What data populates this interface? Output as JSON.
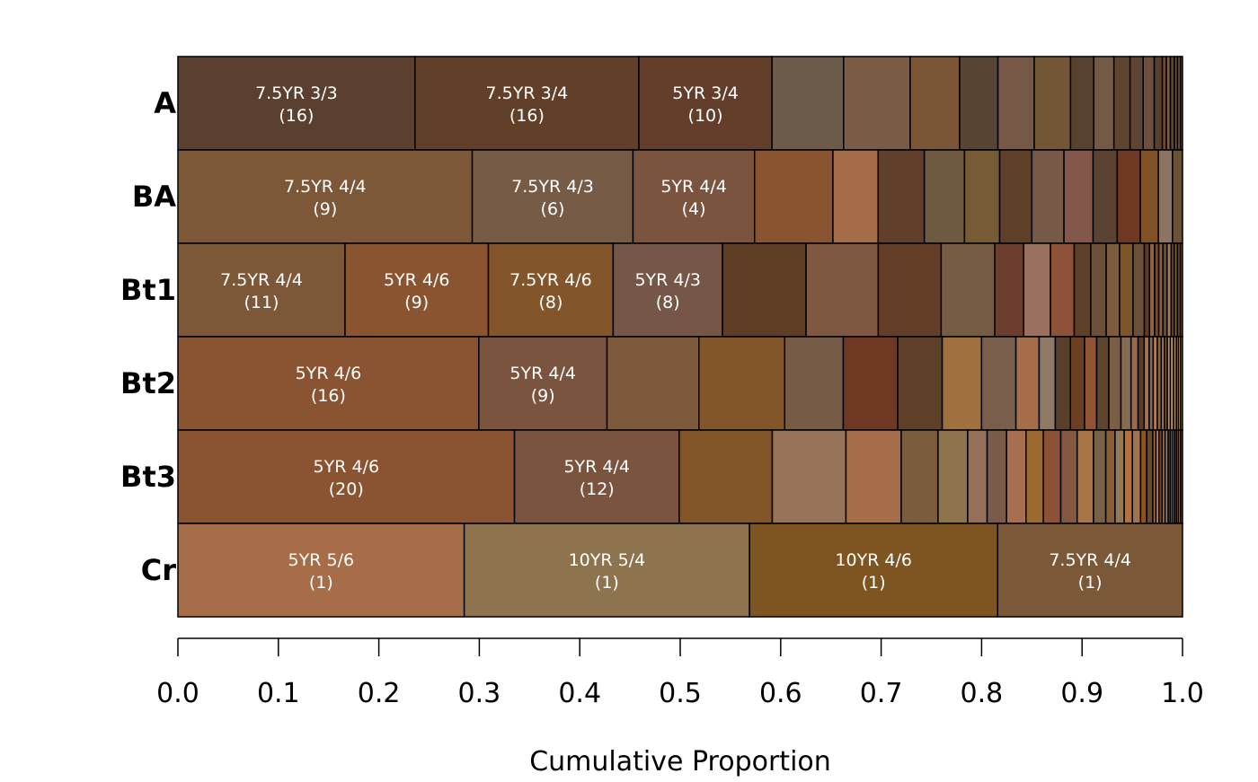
{
  "chart_data": {
    "type": "stacked-proportion-bar",
    "title": "",
    "xlabel": "Cumulative Proportion",
    "ylabel": "",
    "xlim": [
      0,
      1
    ],
    "x_ticks": [
      "0.0",
      "0.1",
      "0.2",
      "0.3",
      "0.4",
      "0.5",
      "0.6",
      "0.7",
      "0.8",
      "0.9",
      "1.0"
    ],
    "rows": [
      {
        "name": "A",
        "segments": [
          {
            "proportion": 0.235,
            "color": "#5b4030",
            "label": "7.5YR 3/3",
            "count": "(16)"
          },
          {
            "proportion": 0.222,
            "color": "#613f28",
            "label": "7.5YR 3/4",
            "count": "(16)"
          },
          {
            "proportion": 0.132,
            "color": "#633e2b",
            "label": "5YR 3/4",
            "count": "(10)"
          },
          {
            "proportion": 0.071,
            "color": "#6c5a4a"
          },
          {
            "proportion": 0.066,
            "color": "#785c45"
          },
          {
            "proportion": 0.049,
            "color": "#7a5536"
          },
          {
            "proportion": 0.038,
            "color": "#574433"
          },
          {
            "proportion": 0.036,
            "color": "#755845"
          },
          {
            "proportion": 0.036,
            "color": "#735636"
          },
          {
            "proportion": 0.023,
            "color": "#56422e"
          },
          {
            "proportion": 0.02,
            "color": "#725a44"
          },
          {
            "proportion": 0.016,
            "color": "#5f4530"
          },
          {
            "proportion": 0.013,
            "color": "#5f4431"
          },
          {
            "proportion": 0.011,
            "color": "#704e3c"
          },
          {
            "proportion": 0.008,
            "color": "#5a3f2d"
          },
          {
            "proportion": 0.004,
            "color": "#6b4a36"
          },
          {
            "proportion": 0.004,
            "color": "#7a5a40"
          },
          {
            "proportion": 0.004,
            "color": "#5e4634"
          },
          {
            "proportion": 0.003,
            "color": "#735337"
          },
          {
            "proportion": 0.003,
            "color": "#644a38"
          },
          {
            "proportion": 0.002,
            "color": "#6e533c"
          }
        ]
      },
      {
        "name": "BA",
        "segments": [
          {
            "proportion": 0.293,
            "color": "#7c5838",
            "label": "7.5YR 4/4",
            "count": "(9)"
          },
          {
            "proportion": 0.16,
            "color": "#765b46",
            "label": "7.5YR 4/3",
            "count": "(6)"
          },
          {
            "proportion": 0.121,
            "color": "#7b5440",
            "label": "5YR 4/4",
            "count": "(4)"
          },
          {
            "proportion": 0.078,
            "color": "#8a5431"
          },
          {
            "proportion": 0.045,
            "color": "#a46c48"
          },
          {
            "proportion": 0.046,
            "color": "#623f2a"
          },
          {
            "proportion": 0.04,
            "color": "#6e5a40"
          },
          {
            "proportion": 0.035,
            "color": "#775a36"
          },
          {
            "proportion": 0.032,
            "color": "#5e3f28"
          },
          {
            "proportion": 0.032,
            "color": "#765946"
          },
          {
            "proportion": 0.029,
            "color": "#83574a"
          },
          {
            "proportion": 0.024,
            "color": "#5b4331"
          },
          {
            "proportion": 0.023,
            "color": "#6e3823"
          },
          {
            "proportion": 0.018,
            "color": "#805124"
          },
          {
            "proportion": 0.014,
            "color": "#8c7462"
          },
          {
            "proportion": 0.01,
            "color": "#6a5236"
          }
        ]
      },
      {
        "name": "Bt1",
        "segments": [
          {
            "proportion": 0.162,
            "color": "#7c5839",
            "label": "7.5YR 4/4",
            "count": "(11)"
          },
          {
            "proportion": 0.139,
            "color": "#8a5431",
            "label": "5YR 4/6",
            "count": "(9)"
          },
          {
            "proportion": 0.121,
            "color": "#82552a",
            "label": "7.5YR 4/6",
            "count": "(8)"
          },
          {
            "proportion": 0.106,
            "color": "#765646",
            "label": "5YR 4/3",
            "count": "(8)"
          },
          {
            "proportion": 0.081,
            "color": "#5f3e25"
          },
          {
            "proportion": 0.07,
            "color": "#7e5840"
          },
          {
            "proportion": 0.061,
            "color": "#643f28"
          },
          {
            "proportion": 0.052,
            "color": "#765c45"
          },
          {
            "proportion": 0.028,
            "color": "#6d3d30"
          },
          {
            "proportion": 0.026,
            "color": "#9a7060"
          },
          {
            "proportion": 0.023,
            "color": "#8e5239"
          },
          {
            "proportion": 0.016,
            "color": "#5c4128"
          },
          {
            "proportion": 0.015,
            "color": "#6a4f39"
          },
          {
            "proportion": 0.013,
            "color": "#7c5c3f"
          },
          {
            "proportion": 0.013,
            "color": "#7d5627"
          },
          {
            "proportion": 0.011,
            "color": "#6a5038"
          },
          {
            "proportion": 0.005,
            "color": "#5e3c2a"
          },
          {
            "proportion": 0.005,
            "color": "#8b6244"
          },
          {
            "proportion": 0.004,
            "color": "#714c33"
          },
          {
            "proportion": 0.004,
            "color": "#846048"
          },
          {
            "proportion": 0.004,
            "color": "#6b4a30"
          },
          {
            "proportion": 0.004,
            "color": "#9a7a62"
          },
          {
            "proportion": 0.003,
            "color": "#6e3e2a"
          },
          {
            "proportion": 0.003,
            "color": "#7a5c40"
          },
          {
            "proportion": 0.003,
            "color": "#5d3e2c"
          },
          {
            "proportion": 0.002,
            "color": "#8a6445"
          }
        ]
      },
      {
        "name": "Bt2",
        "segments": [
          {
            "proportion": 0.298,
            "color": "#8a5331",
            "label": "5YR 4/6",
            "count": "(16)"
          },
          {
            "proportion": 0.127,
            "color": "#7b5440",
            "label": "5YR 4/4",
            "count": "(9)"
          },
          {
            "proportion": 0.091,
            "color": "#7e5a3c"
          },
          {
            "proportion": 0.085,
            "color": "#83562a"
          },
          {
            "proportion": 0.058,
            "color": "#765b46"
          },
          {
            "proportion": 0.054,
            "color": "#6e3823"
          },
          {
            "proportion": 0.044,
            "color": "#5e3f28"
          },
          {
            "proportion": 0.039,
            "color": "#a0703f"
          },
          {
            "proportion": 0.034,
            "color": "#795e4c"
          },
          {
            "proportion": 0.023,
            "color": "#a56d4a"
          },
          {
            "proportion": 0.016,
            "color": "#8e7a64"
          },
          {
            "proportion": 0.015,
            "color": "#5a3f2a"
          },
          {
            "proportion": 0.014,
            "color": "#6b3f22"
          },
          {
            "proportion": 0.012,
            "color": "#915535"
          },
          {
            "proportion": 0.012,
            "color": "#5e4530"
          },
          {
            "proportion": 0.012,
            "color": "#7b5f45"
          },
          {
            "proportion": 0.01,
            "color": "#846c50"
          },
          {
            "proportion": 0.007,
            "color": "#9a6a4a"
          },
          {
            "proportion": 0.006,
            "color": "#5c3b2a"
          },
          {
            "proportion": 0.005,
            "color": "#a0724a"
          },
          {
            "proportion": 0.004,
            "color": "#7a6a5a"
          },
          {
            "proportion": 0.004,
            "color": "#b08052"
          },
          {
            "proportion": 0.004,
            "color": "#8a6040"
          },
          {
            "proportion": 0.003,
            "color": "#a07a58"
          },
          {
            "proportion": 0.003,
            "color": "#6c5038"
          },
          {
            "proportion": 0.003,
            "color": "#b89068"
          },
          {
            "proportion": 0.003,
            "color": "#c09a70"
          },
          {
            "proportion": 0.003,
            "color": "#9a7a50"
          },
          {
            "proportion": 0.002,
            "color": "#a88a62"
          },
          {
            "proportion": 0.002,
            "color": "#c4a070"
          },
          {
            "proportion": 0.002,
            "color": "#8a7050"
          }
        ]
      },
      {
        "name": "Bt3",
        "segments": [
          {
            "proportion": 0.329,
            "color": "#8a5331",
            "label": "5YR 4/6",
            "count": "(20)"
          },
          {
            "proportion": 0.161,
            "color": "#7b5440",
            "label": "5YR 4/4",
            "count": "(12)"
          },
          {
            "proportion": 0.091,
            "color": "#83562a"
          },
          {
            "proportion": 0.072,
            "color": "#977459"
          },
          {
            "proportion": 0.054,
            "color": "#a56d48"
          },
          {
            "proportion": 0.036,
            "color": "#7b5c3e"
          },
          {
            "proportion": 0.029,
            "color": "#8e734f"
          },
          {
            "proportion": 0.019,
            "color": "#94705b"
          },
          {
            "proportion": 0.019,
            "color": "#7a5a48"
          },
          {
            "proportion": 0.019,
            "color": "#a86e50"
          },
          {
            "proportion": 0.017,
            "color": "#9a6a30"
          },
          {
            "proportion": 0.017,
            "color": "#8c5238"
          },
          {
            "proportion": 0.016,
            "color": "#855840"
          },
          {
            "proportion": 0.016,
            "color": "#a87548"
          },
          {
            "proportion": 0.012,
            "color": "#7b6048"
          },
          {
            "proportion": 0.009,
            "color": "#8a5e34"
          },
          {
            "proportion": 0.009,
            "color": "#927a58"
          },
          {
            "proportion": 0.008,
            "color": "#b07244"
          },
          {
            "proportion": 0.008,
            "color": "#9c7650"
          },
          {
            "proportion": 0.006,
            "color": "#875428"
          },
          {
            "proportion": 0.006,
            "color": "#6a4a2c"
          },
          {
            "proportion": 0.003,
            "color": "#a06a3e"
          },
          {
            "proportion": 0.003,
            "color": "#b87a58"
          },
          {
            "proportion": 0.003,
            "color": "#7a4a30"
          },
          {
            "proportion": 0.003,
            "color": "#8e6a50"
          },
          {
            "proportion": 0.003,
            "color": "#a07860"
          },
          {
            "proportion": 0.002,
            "color": "#6e5440"
          },
          {
            "proportion": 0.002,
            "color": "#9e7e64"
          },
          {
            "proportion": 0.002,
            "color": "#b08a6a"
          },
          {
            "proportion": 0.002,
            "color": "#7e5c48"
          },
          {
            "proportion": 0.002,
            "color": "#8a6a56"
          },
          {
            "proportion": 0.002,
            "color": "#a4846a"
          },
          {
            "proportion": 0.002,
            "color": "#6a4c38"
          }
        ]
      },
      {
        "name": "Cr",
        "segments": [
          {
            "proportion": 0.285,
            "color": "#a66d48",
            "label": "5YR 5/6",
            "count": "(1)"
          },
          {
            "proportion": 0.284,
            "color": "#8e734f",
            "label": "10YR 5/4",
            "count": "(1)"
          },
          {
            "proportion": 0.247,
            "color": "#7e5520",
            "label": "10YR 4/6",
            "count": "(1)"
          },
          {
            "proportion": 0.184,
            "color": "#7b5838",
            "label": "7.5YR 4/4",
            "count": "(1)"
          }
        ]
      }
    ]
  }
}
